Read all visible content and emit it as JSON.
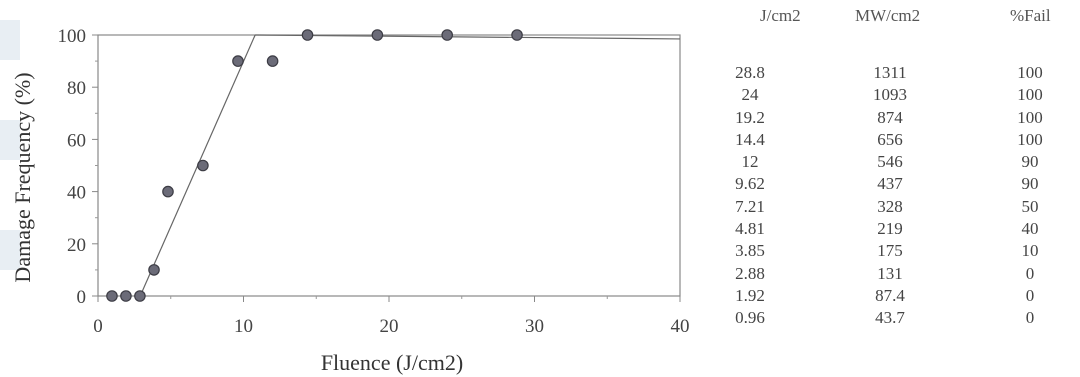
{
  "chart_data": {
    "type": "scatter",
    "xlabel": "Fluence (J/cm2)",
    "ylabel": "Damage Frequency (%)",
    "xlim": [
      0,
      40
    ],
    "ylim": [
      0,
      100
    ],
    "xticks": [
      "0",
      "10",
      "20",
      "30",
      "40"
    ],
    "yticks": [
      "0",
      "20",
      "40",
      "60",
      "80",
      "100"
    ],
    "grid": false,
    "points": [
      {
        "x": 0.96,
        "y": 0
      },
      {
        "x": 1.92,
        "y": 0
      },
      {
        "x": 2.88,
        "y": 0
      },
      {
        "x": 3.85,
        "y": 10
      },
      {
        "x": 4.81,
        "y": 40
      },
      {
        "x": 7.21,
        "y": 50
      },
      {
        "x": 9.62,
        "y": 90
      },
      {
        "x": 12,
        "y": 90
      },
      {
        "x": 14.4,
        "y": 100
      },
      {
        "x": 19.2,
        "y": 100
      },
      {
        "x": 24,
        "y": 100
      },
      {
        "x": 28.8,
        "y": 100
      }
    ],
    "fit_lines": [
      {
        "from": [
          2.9,
          0
        ],
        "to": [
          10.8,
          100
        ]
      },
      {
        "from": [
          10.8,
          100
        ],
        "to": [
          40,
          98.5
        ]
      }
    ],
    "point_color": "#6b6b78",
    "line_color": "#666666"
  },
  "table": {
    "headers": [
      "J/cm2",
      "MW/cm2",
      "%Fail"
    ],
    "rows": [
      [
        "28.8",
        "1311",
        "100"
      ],
      [
        "24",
        "1093",
        "100"
      ],
      [
        "19.2",
        "874",
        "100"
      ],
      [
        "14.4",
        "656",
        "100"
      ],
      [
        "12",
        "546",
        "90"
      ],
      [
        "9.62",
        "437",
        "90"
      ],
      [
        "7.21",
        "328",
        "50"
      ],
      [
        "4.81",
        "219",
        "40"
      ],
      [
        "3.85",
        "175",
        "10"
      ],
      [
        "2.88",
        "131",
        "0"
      ],
      [
        "1.92",
        "87.4",
        "0"
      ],
      [
        "0.96",
        "43.7",
        "0"
      ]
    ]
  }
}
